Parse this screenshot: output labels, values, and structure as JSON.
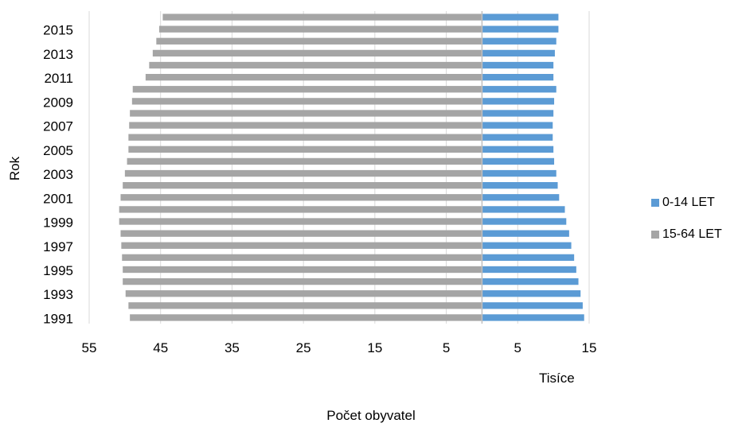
{
  "chart_data": {
    "type": "bar",
    "orientation": "horizontal",
    "layout": "population-pyramid",
    "ylabel": "Rok",
    "xlabel": "Počet obyvatel",
    "unit_label": "Tisíce",
    "categories": [
      "1991",
      "1992",
      "1993",
      "1994",
      "1995",
      "1996",
      "1997",
      "1998",
      "1999",
      "2000",
      "2001",
      "2002",
      "2003",
      "2004",
      "2005",
      "2006",
      "2007",
      "2008",
      "2009",
      "2010",
      "2011",
      "2012",
      "2013",
      "2014",
      "2015",
      "2016"
    ],
    "y_tick_labels": [
      "1991",
      "1993",
      "1995",
      "1997",
      "1999",
      "2001",
      "2003",
      "2005",
      "2007",
      "2009",
      "2011",
      "2013",
      "2015"
    ],
    "x_tick_labels": [
      "55",
      "45",
      "35",
      "25",
      "15",
      "5",
      "5",
      "15"
    ],
    "x_tick_values": [
      -55,
      -45,
      -35,
      -25,
      -15,
      -5,
      5,
      15
    ],
    "xlim": [
      -55,
      15
    ],
    "grid": true,
    "legend_position": "right",
    "series": [
      {
        "name": "0-14 LET",
        "color": "#5b9bd5",
        "side": "right",
        "values": [
          14.3,
          14.1,
          13.8,
          13.5,
          13.2,
          12.9,
          12.5,
          12.2,
          11.8,
          11.6,
          10.8,
          10.6,
          10.4,
          10.1,
          10.0,
          9.9,
          9.9,
          10.0,
          10.1,
          10.4,
          10.0,
          10.0,
          10.2,
          10.4,
          10.7,
          10.7
        ]
      },
      {
        "name": "15-64 LET",
        "color": "#a5a5a5",
        "side": "left",
        "values": [
          49.3,
          49.5,
          49.9,
          50.3,
          50.3,
          50.4,
          50.5,
          50.6,
          50.8,
          50.8,
          50.6,
          50.3,
          50.0,
          49.7,
          49.5,
          49.5,
          49.4,
          49.3,
          49.0,
          48.9,
          47.1,
          46.6,
          46.1,
          45.6,
          45.2,
          44.7
        ]
      }
    ]
  }
}
